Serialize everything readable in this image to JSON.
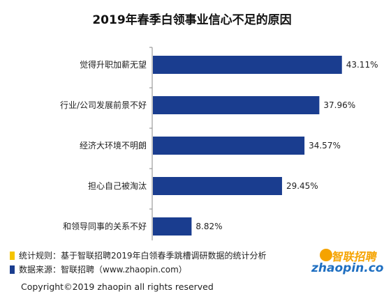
{
  "chart_data": {
    "type": "bar",
    "orientation": "horizontal",
    "title": "2019年春季白领事业信心不足的原因",
    "categories": [
      "觉得升职加薪无望",
      "行业/公司发展前景不好",
      "经济大环境不明朗",
      "担心自己被淘汰",
      "和领导同事的关系不好"
    ],
    "values": [
      43.11,
      37.96,
      34.57,
      29.45,
      8.82
    ],
    "value_labels": [
      "43.11%",
      "37.96%",
      "34.57%",
      "29.45%",
      "8.82%"
    ],
    "xlim": [
      0,
      50
    ],
    "grid": false,
    "bar_color": "#1a3d8f"
  },
  "footnotes": [
    {
      "text": "统计规则：基于智联招聘2019年白领春季跳槽调研数据的统计分析",
      "color": "#f5c400"
    },
    {
      "text": "数据来源：智联招聘（www.zhaopin.com）",
      "color": "#1a3d8f"
    }
  ],
  "copyright": "Copyright©2019 zhaopin all rights reserved",
  "logo": {
    "chinese": "智联招聘",
    "english": "zhaopin.com"
  }
}
